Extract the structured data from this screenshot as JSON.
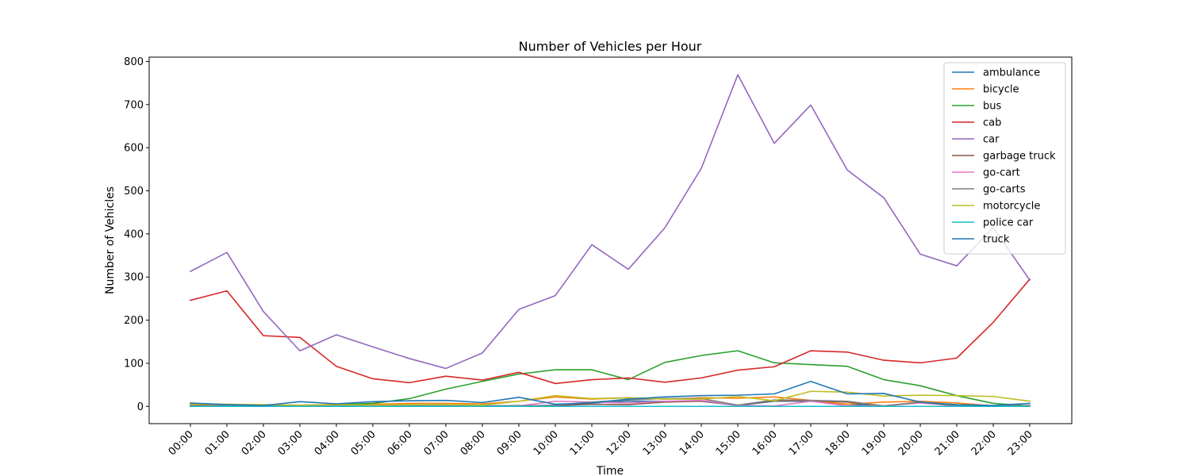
{
  "chart_data": {
    "type": "line",
    "title": "Number of Vehicles per Hour",
    "xlabel": "Time",
    "ylabel": "Number of Vehicles",
    "ylim": [
      -40,
      810
    ],
    "yticks": [
      0,
      100,
      200,
      300,
      400,
      500,
      600,
      700,
      800
    ],
    "grid": false,
    "legend_position": "top-right",
    "categories": [
      "00:00",
      "01:00",
      "02:00",
      "03:00",
      "04:00",
      "05:00",
      "06:00",
      "07:00",
      "08:00",
      "09:00",
      "10:00",
      "11:00",
      "12:00",
      "13:00",
      "14:00",
      "15:00",
      "16:00",
      "17:00",
      "18:00",
      "19:00",
      "20:00",
      "21:00",
      "22:00",
      "23:00"
    ],
    "series": [
      {
        "name": "ambulance",
        "color": "#1f77b4",
        "values": [
          2,
          1,
          1,
          2,
          3,
          1,
          2,
          2,
          1,
          2,
          1,
          8,
          12,
          12,
          12,
          2,
          12,
          12,
          5,
          1,
          10,
          3,
          1,
          2
        ]
      },
      {
        "name": "bicycle",
        "color": "#ff7f0e",
        "values": [
          5,
          4,
          3,
          2,
          5,
          5,
          7,
          7,
          6,
          12,
          22,
          17,
          20,
          17,
          20,
          19,
          22,
          14,
          5,
          10,
          12,
          8,
          1,
          2
        ]
      },
      {
        "name": "bus",
        "color": "#2ca02c",
        "values": [
          2,
          1,
          1,
          2,
          4,
          7,
          18,
          40,
          58,
          75,
          85,
          85,
          62,
          102,
          118,
          129,
          101,
          97,
          93,
          62,
          48,
          25,
          7,
          1
        ]
      },
      {
        "name": "cab",
        "color": "#d62728",
        "values": [
          246,
          268,
          164,
          160,
          93,
          64,
          55,
          70,
          61,
          79,
          53,
          62,
          66,
          56,
          66,
          84,
          92,
          129,
          126,
          107,
          101,
          112,
          195,
          295
        ]
      },
      {
        "name": "car",
        "color": "#9467bd",
        "values": [
          313,
          357,
          220,
          129,
          166,
          138,
          111,
          88,
          124,
          225,
          257,
          375,
          318,
          414,
          552,
          769,
          610,
          699,
          548,
          484,
          353,
          326,
          415,
          293
        ]
      },
      {
        "name": "garbage truck",
        "color": "#8c564b",
        "values": [
          1,
          1,
          1,
          1,
          1,
          1,
          1,
          1,
          1,
          1,
          2,
          5,
          4,
          10,
          12,
          3,
          13,
          13,
          10,
          1,
          9,
          1,
          1,
          1
        ]
      },
      {
        "name": "go-cart",
        "color": "#e377c2",
        "values": [
          1,
          1,
          1,
          1,
          1,
          1,
          1,
          1,
          1,
          1,
          12,
          10,
          8,
          12,
          14,
          2,
          1,
          12,
          1,
          1,
          8,
          1,
          1,
          1
        ]
      },
      {
        "name": "go-carts",
        "color": "#7f7f7f",
        "values": [
          1,
          1,
          1,
          1,
          1,
          1,
          1,
          1,
          1,
          1,
          3,
          10,
          15,
          18,
          18,
          3,
          15,
          14,
          12,
          1,
          10,
          1,
          1,
          1
        ]
      },
      {
        "name": "motorcycle",
        "color": "#bcbd22",
        "values": [
          6,
          5,
          4,
          3,
          4,
          3,
          4,
          4,
          3,
          12,
          25,
          18,
          20,
          17,
          17,
          23,
          13,
          35,
          33,
          24,
          26,
          25,
          23,
          12
        ]
      },
      {
        "name": "police car",
        "color": "#17becf",
        "values": [
          0,
          0,
          0,
          0,
          0,
          0,
          0,
          0,
          0,
          0,
          0,
          0,
          0,
          0,
          0,
          0,
          0,
          0,
          0,
          0,
          0,
          0,
          0,
          0
        ]
      },
      {
        "name": "truck",
        "color": "#1f77b4",
        "values": [
          8,
          4,
          2,
          11,
          6,
          11,
          13,
          14,
          9,
          21,
          5,
          8,
          17,
          22,
          25,
          26,
          29,
          58,
          29,
          30,
          10,
          4,
          2,
          7
        ]
      }
    ]
  }
}
